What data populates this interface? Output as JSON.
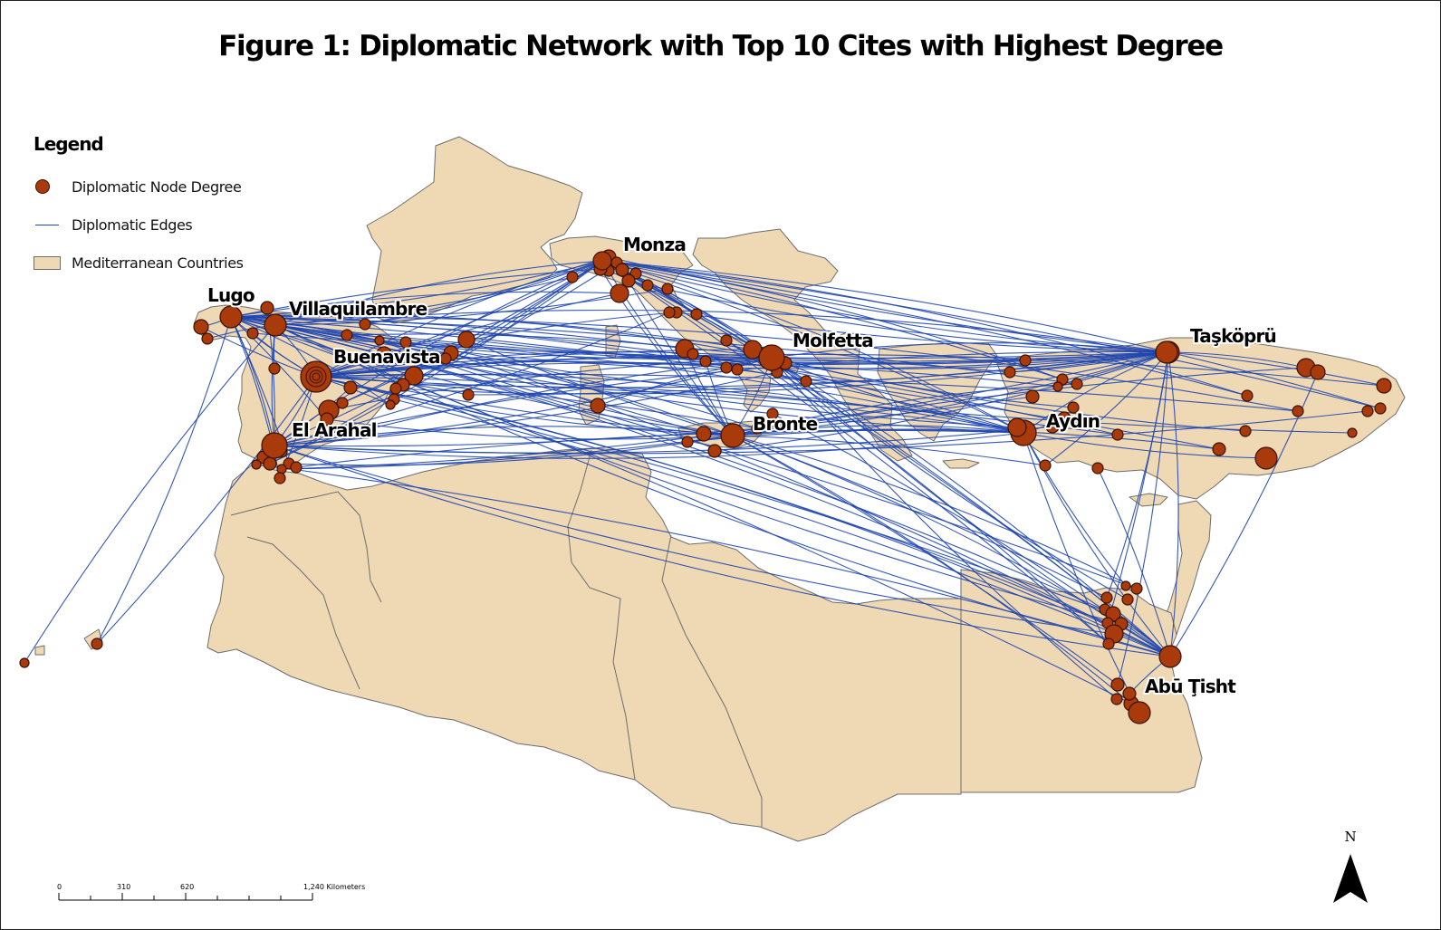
{
  "title": "Figure 1: Diplomatic Network with Top 10 Cites with Highest Degree",
  "legend": {
    "title": "Legend",
    "items": [
      {
        "label": "Diplomatic Node Degree",
        "symbol": "node-circle"
      },
      {
        "label": "Diplomatic Edges",
        "symbol": "edge-line"
      },
      {
        "label": "Mediterranean Countries",
        "symbol": "country-fill"
      }
    ]
  },
  "colors": {
    "country_fill": "#efd9b4",
    "country_border": "#6d6d6d",
    "node_fill": "#a83a0c",
    "node_stroke": "#3a1200",
    "edge": "#1f46b0",
    "sea": "#ffffff"
  },
  "top_cities": [
    {
      "id": "lugo",
      "name": "Lugo"
    },
    {
      "id": "villaquilambre",
      "name": "Villaquilambre"
    },
    {
      "id": "buenavista",
      "name": "Buenavista"
    },
    {
      "id": "el_arahal",
      "name": "El Arahal"
    },
    {
      "id": "monza",
      "name": "Monza"
    },
    {
      "id": "molfetta",
      "name": "Molfetta"
    },
    {
      "id": "bronte",
      "name": "Bronte"
    },
    {
      "id": "aydin",
      "name": "Aydın"
    },
    {
      "id": "taskopru",
      "name": "Taşköprü"
    },
    {
      "id": "abu_tisht",
      "name": "Abū Ţisht"
    }
  ],
  "scale_bar": {
    "ticks": [
      "0",
      "310",
      "620",
      "1,240 Kilometers"
    ]
  },
  "north_arrow": {
    "letter": "N"
  }
}
